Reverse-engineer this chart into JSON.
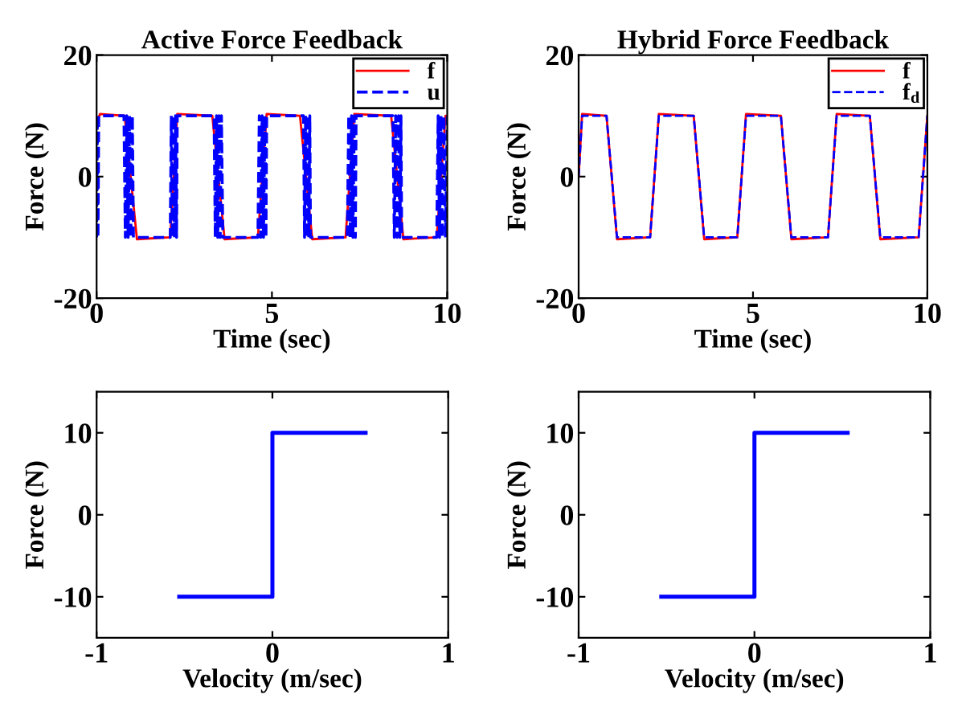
{
  "chart_data": [
    {
      "type": "line",
      "title": "Active Force Feedback",
      "xlabel": "Time (sec)",
      "ylabel": "Force (N)",
      "xlim": [
        0,
        10
      ],
      "ylim": [
        -20,
        20
      ],
      "xticks": [
        0,
        5,
        10
      ],
      "yticks": [
        -20,
        0,
        20
      ],
      "grid": false,
      "legend": "top right",
      "marker": "none",
      "series": [
        {
          "name": "f",
          "color": "#ff0000",
          "line_style": "solid",
          "x": [
            0,
            0.1,
            0.8,
            1.15,
            2.1,
            2.3,
            3.3,
            3.65,
            4.6,
            4.85,
            5.8,
            6.15,
            7.1,
            7.35,
            8.4,
            8.75,
            9.7,
            9.95,
            10
          ],
          "values": [
            9,
            10.3,
            10,
            -10.3,
            -10,
            10.3,
            10,
            -10.3,
            -10,
            10.3,
            10,
            -10.3,
            -10,
            10.3,
            10,
            -10.3,
            -10,
            10,
            10
          ]
        },
        {
          "name": "u",
          "color": "#0000ff",
          "line_style": "dashed",
          "x": [
            0,
            0.02,
            0.04,
            0.06,
            0.78,
            0.82,
            0.86,
            0.9,
            0.94,
            0.98,
            1.02,
            1.05,
            2.1,
            2.13,
            2.16,
            2.19,
            2.22,
            2.25,
            2.28,
            2.3,
            3.35,
            3.385,
            3.42,
            3.455,
            3.49,
            3.525,
            3.56,
            3.6,
            4.6,
            4.64,
            4.68,
            4.72,
            4.76,
            4.8,
            4.83,
            4.85,
            5.9,
            5.93,
            5.96,
            5.99,
            6.02,
            6.05,
            6.08,
            6.1,
            7.15,
            7.19,
            7.23,
            7.27,
            7.31,
            7.35,
            7.38,
            7.4,
            8.45,
            8.49,
            8.53,
            8.57,
            8.61,
            8.65,
            8.68,
            8.7,
            9.7,
            9.74,
            9.78,
            9.82,
            9.86,
            9.9,
            9.95,
            10
          ],
          "values": [
            -10,
            10,
            -10,
            10,
            10,
            -10,
            10,
            -10,
            10,
            -10,
            10,
            -10,
            -10,
            10,
            -10,
            10,
            -10,
            10,
            -10,
            10,
            10,
            -10,
            10,
            -10,
            10,
            -10,
            10,
            -10,
            -10,
            10,
            -10,
            10,
            -10,
            10,
            -10,
            10,
            10,
            -10,
            10,
            -10,
            10,
            -10,
            10,
            -10,
            -10,
            10,
            -10,
            10,
            -10,
            10,
            -10,
            10,
            10,
            -10,
            10,
            -10,
            10,
            -10,
            10,
            -10,
            -10,
            10,
            -10,
            10,
            -10,
            10,
            -10,
            10
          ]
        }
      ]
    },
    {
      "type": "line",
      "title": "Hybrid Force Feedback",
      "xlabel": "Time (sec)",
      "ylabel": "Force (N)",
      "xlim": [
        0,
        10
      ],
      "ylim": [
        -20,
        20
      ],
      "xticks": [
        0,
        5,
        10
      ],
      "yticks": [
        -20,
        0,
        20
      ],
      "grid": false,
      "legend": "top right",
      "marker": "none",
      "series": [
        {
          "name": "f",
          "color": "#ff0000",
          "line_style": "solid",
          "x": [
            0,
            0.1,
            0.8,
            1.1,
            2.05,
            2.3,
            3.3,
            3.6,
            4.55,
            4.8,
            5.8,
            6.1,
            7.15,
            7.4,
            8.35,
            8.65,
            9.75,
            10
          ],
          "values": [
            0,
            10.3,
            10,
            -10.3,
            -10,
            10.3,
            10,
            -10.3,
            -10,
            10.3,
            10,
            -10.3,
            -10,
            10.3,
            10,
            -10.3,
            -10,
            10
          ]
        },
        {
          "name": "f$_{d}$",
          "color": "#0000ff",
          "line_style": "dashed",
          "x": [
            0,
            0.1,
            0.8,
            1.1,
            2.05,
            2.3,
            3.3,
            3.6,
            4.55,
            4.8,
            5.8,
            6.1,
            7.15,
            7.4,
            8.35,
            8.65,
            9.75,
            10
          ],
          "values": [
            0,
            10,
            10,
            -10,
            -10,
            10,
            10,
            -10,
            -10,
            10,
            10,
            -10,
            -10,
            10,
            10,
            -10,
            -10,
            10
          ]
        }
      ]
    },
    {
      "type": "line",
      "xlabel": "Velocity (m/sec)",
      "ylabel": "Force (N)",
      "xlim": [
        -1,
        1
      ],
      "ylim": [
        -15,
        15
      ],
      "xticks": [
        -1,
        0,
        1
      ],
      "yticks": [
        -10,
        0,
        10
      ],
      "grid": false,
      "marker": "none",
      "series": [
        {
          "color": "#0000ff",
          "line_style": "solid",
          "x": [
            -0.53,
            0,
            0,
            0.53
          ],
          "values": [
            -10,
            -10,
            10,
            10
          ]
        }
      ]
    },
    {
      "type": "line",
      "xlabel": "Velocity (m/sec)",
      "ylabel": "Force (N)",
      "xlim": [
        -1,
        1
      ],
      "ylim": [
        -15,
        15
      ],
      "xticks": [
        -1,
        0,
        1
      ],
      "yticks": [
        -10,
        0,
        10
      ],
      "grid": false,
      "marker": "none",
      "series": [
        {
          "color": "#0000ff",
          "line_style": "solid",
          "x": [
            -0.53,
            0,
            0,
            0.53
          ],
          "values": [
            -10,
            -10,
            10,
            10
          ]
        }
      ]
    }
  ]
}
